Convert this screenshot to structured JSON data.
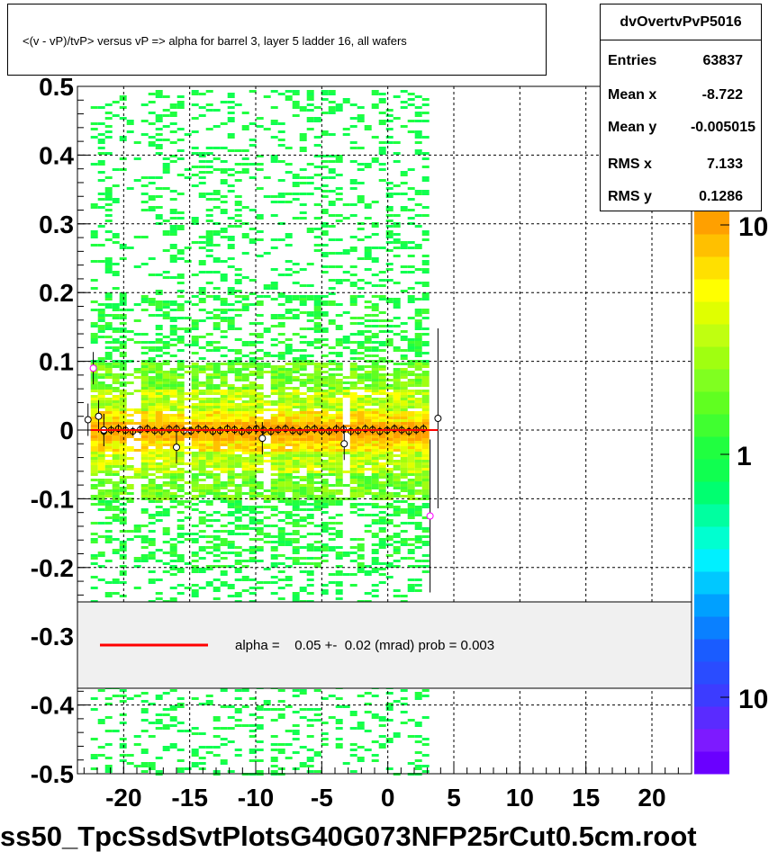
{
  "title": "<(v - vP)/tvP> versus   vP => alpha for barrel 3, layer 5 ladder 16, all wafers",
  "stats": {
    "name": "dvOvertvPvP5016",
    "rows": [
      {
        "label": "Entries",
        "value": "63837"
      },
      {
        "label": "Mean x",
        "value": "-8.722"
      },
      {
        "label": "Mean y",
        "value": "-0.005015"
      },
      {
        "label": "RMS x",
        "value": "7.133"
      },
      {
        "label": "RMS y",
        "value": "0.1286"
      }
    ]
  },
  "legend": {
    "fit_label": "alpha =    0.05 +-  0.02 (mrad) prob = 0.003",
    "line_color": "#ff0000"
  },
  "footer": "ss50_TpcSsdSvtPlotsG40G073NFP25rCut0.5cm.root",
  "chart_data": {
    "type": "heatmap",
    "x_range": [
      -23.5,
      23
    ],
    "y_range": [
      -0.5,
      0.5
    ],
    "x_ticks": [
      "-20",
      "-15",
      "-10",
      "-5",
      "0",
      "5",
      "10",
      "15",
      "20"
    ],
    "y_ticks": [
      "-0.5",
      "-0.4",
      "-0.3",
      "-0.2",
      "-0.1",
      "0",
      "0.1",
      "0.2",
      "0.3",
      "0.4",
      "0.5"
    ],
    "grid": true,
    "data_x_range": [
      -22.5,
      3.0
    ],
    "z_scale": "log",
    "z_ticks": [
      "10",
      "1",
      "10"
    ],
    "palette": [
      "#6a00ff",
      "#7d1aff",
      "#5a2bff",
      "#3c3cff",
      "#2a4cff",
      "#1a5cff",
      "#0a80ff",
      "#00a0ff",
      "#00c8ff",
      "#00f0ff",
      "#00ffd0",
      "#00ffa0",
      "#00ff70",
      "#10ff50",
      "#20ff40",
      "#40ff30",
      "#60ff20",
      "#80ff20",
      "#a0ff10",
      "#c0ff10",
      "#e0ff00",
      "#ffff00",
      "#ffe000",
      "#ffc000",
      "#ffa000"
    ],
    "profile_points": [
      {
        "x": -22.7,
        "y": 0.015
      },
      {
        "x": -22.3,
        "y": 0.09
      },
      {
        "x": -21.9,
        "y": 0.02
      },
      {
        "x": -21.5,
        "y": 0.0
      },
      {
        "x": -16.0,
        "y": -0.025
      },
      {
        "x": -9.5,
        "y": -0.012
      },
      {
        "x": -3.3,
        "y": -0.02
      },
      {
        "x": 3.2,
        "y": -0.125
      },
      {
        "x": 3.8,
        "y": 0.017
      }
    ],
    "fit_line": {
      "x": [
        -22.5,
        3.8
      ],
      "y": [
        0.0,
        0.0
      ]
    }
  }
}
